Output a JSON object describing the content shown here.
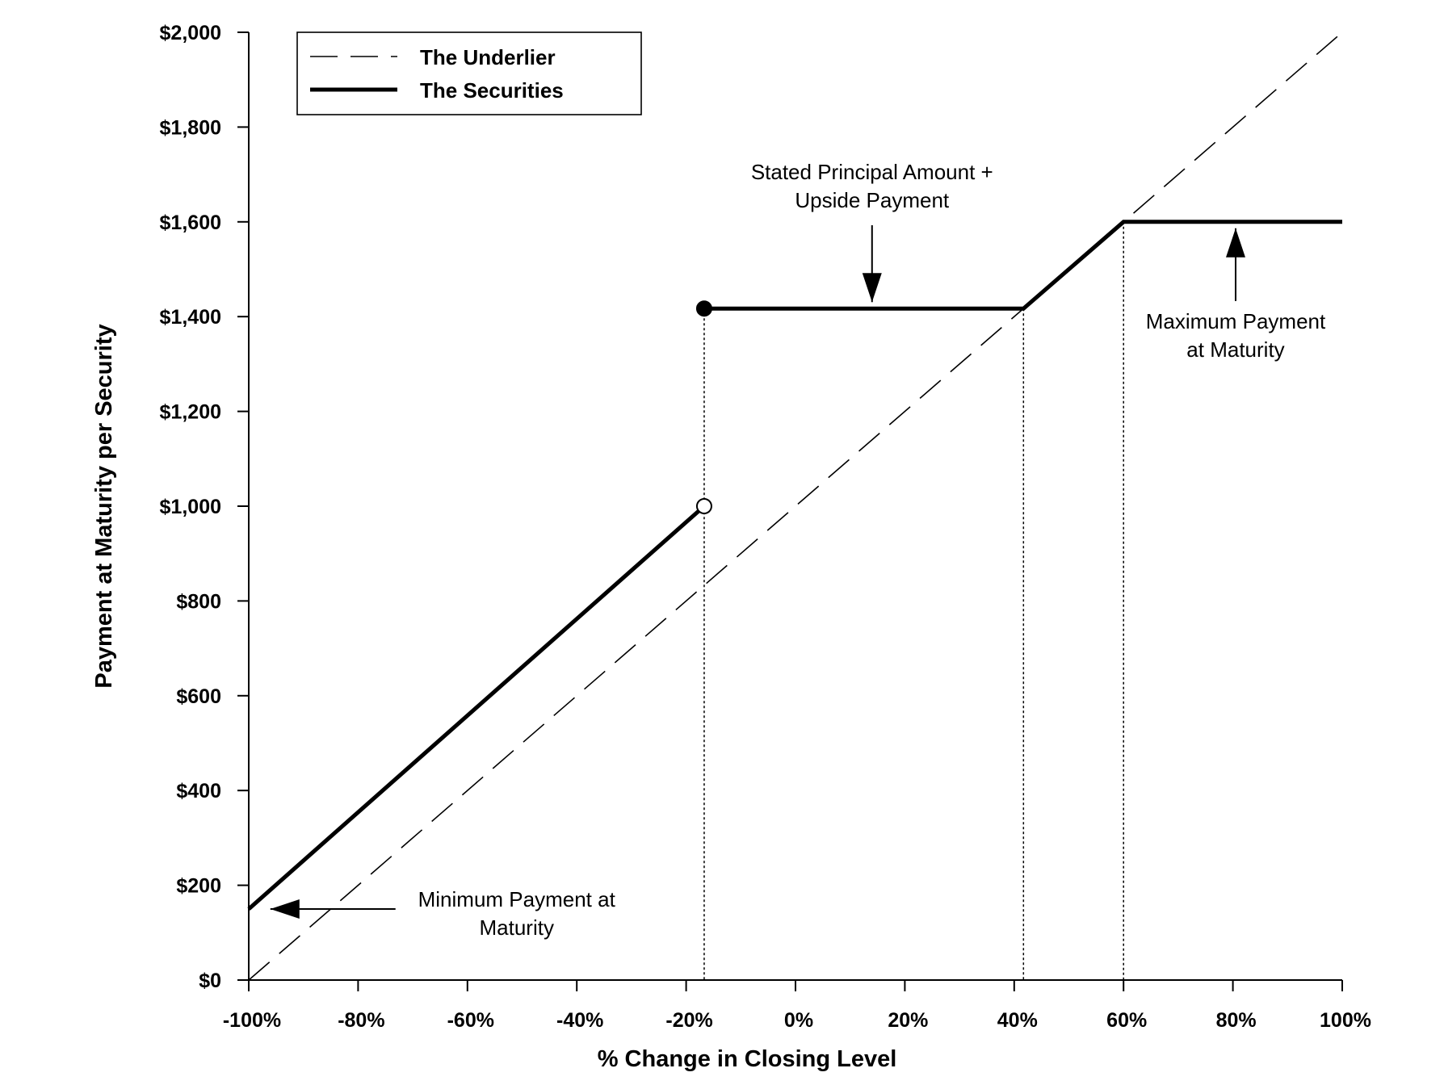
{
  "chart_data": {
    "type": "line",
    "xlabel": "% Change in Closing Level",
    "ylabel": "Payment at Maturity per Security",
    "xlim": [
      -100,
      100
    ],
    "ylim": [
      0,
      2000
    ],
    "x_ticks": [
      -100,
      -80,
      -60,
      -40,
      -20,
      0,
      20,
      40,
      60,
      80,
      100
    ],
    "x_tick_labels": [
      "-100%",
      "-80%",
      "-60%",
      "-40%",
      "-20%",
      "0%",
      "20%",
      "40%",
      "60%",
      "80%",
      "100%"
    ],
    "y_ticks": [
      0,
      200,
      400,
      600,
      800,
      1000,
      1200,
      1400,
      1600,
      1800,
      2000
    ],
    "y_tick_labels": [
      "$0",
      "$200",
      "$400",
      "$600",
      "$800",
      "$1,000",
      "$1,200",
      "$1,400",
      "$1,600",
      "$1,800",
      "$2,000"
    ],
    "grid": false,
    "legend": {
      "placement": "top-left",
      "entries": [
        {
          "label": "The Underlier",
          "style": "dashed"
        },
        {
          "label": "The Securities",
          "style": "solid-bold"
        }
      ]
    },
    "series": [
      {
        "name": "The Underlier",
        "style": "dashed",
        "x": [
          -100,
          100
        ],
        "y": [
          0,
          2000
        ]
      },
      {
        "name": "The Securities",
        "style": "solid",
        "segments": [
          {
            "x": [
              -100,
              -16.7
            ],
            "y": [
              150,
              1000
            ]
          },
          {
            "x": [
              -16.7,
              41.7,
              60,
              100
            ],
            "y": [
              1417,
              1417,
              1600,
              1600
            ]
          }
        ]
      }
    ],
    "markers": [
      {
        "x": -16.7,
        "y": 1417,
        "fill": "filled"
      },
      {
        "x": -16.7,
        "y": 1000,
        "fill": "open"
      }
    ],
    "reference_lines": [
      {
        "x": -16.7,
        "y_top": 1417
      },
      {
        "x": 41.7,
        "y_top": 1417
      },
      {
        "x": 60,
        "y_top": 1600
      }
    ],
    "annotations": [
      {
        "lines": [
          "Stated Principal Amount +",
          "Upside Payment"
        ],
        "text_x": 14,
        "text_y": 1690,
        "arrow_to_x": 14,
        "arrow_to_y": 1417,
        "arrow_dir": "down"
      },
      {
        "lines": [
          "Maximum Payment",
          "at Maturity"
        ],
        "text_x": 80.5,
        "text_y": 1375,
        "arrow_to_x": 80.5,
        "arrow_to_y": 1600,
        "arrow_dir": "up"
      },
      {
        "lines": [
          "Minimum Payment at",
          "Maturity"
        ],
        "text_x": -51,
        "text_y": 155,
        "arrow_to_x": -99,
        "arrow_to_y": 150,
        "arrow_dir": "left"
      }
    ]
  }
}
